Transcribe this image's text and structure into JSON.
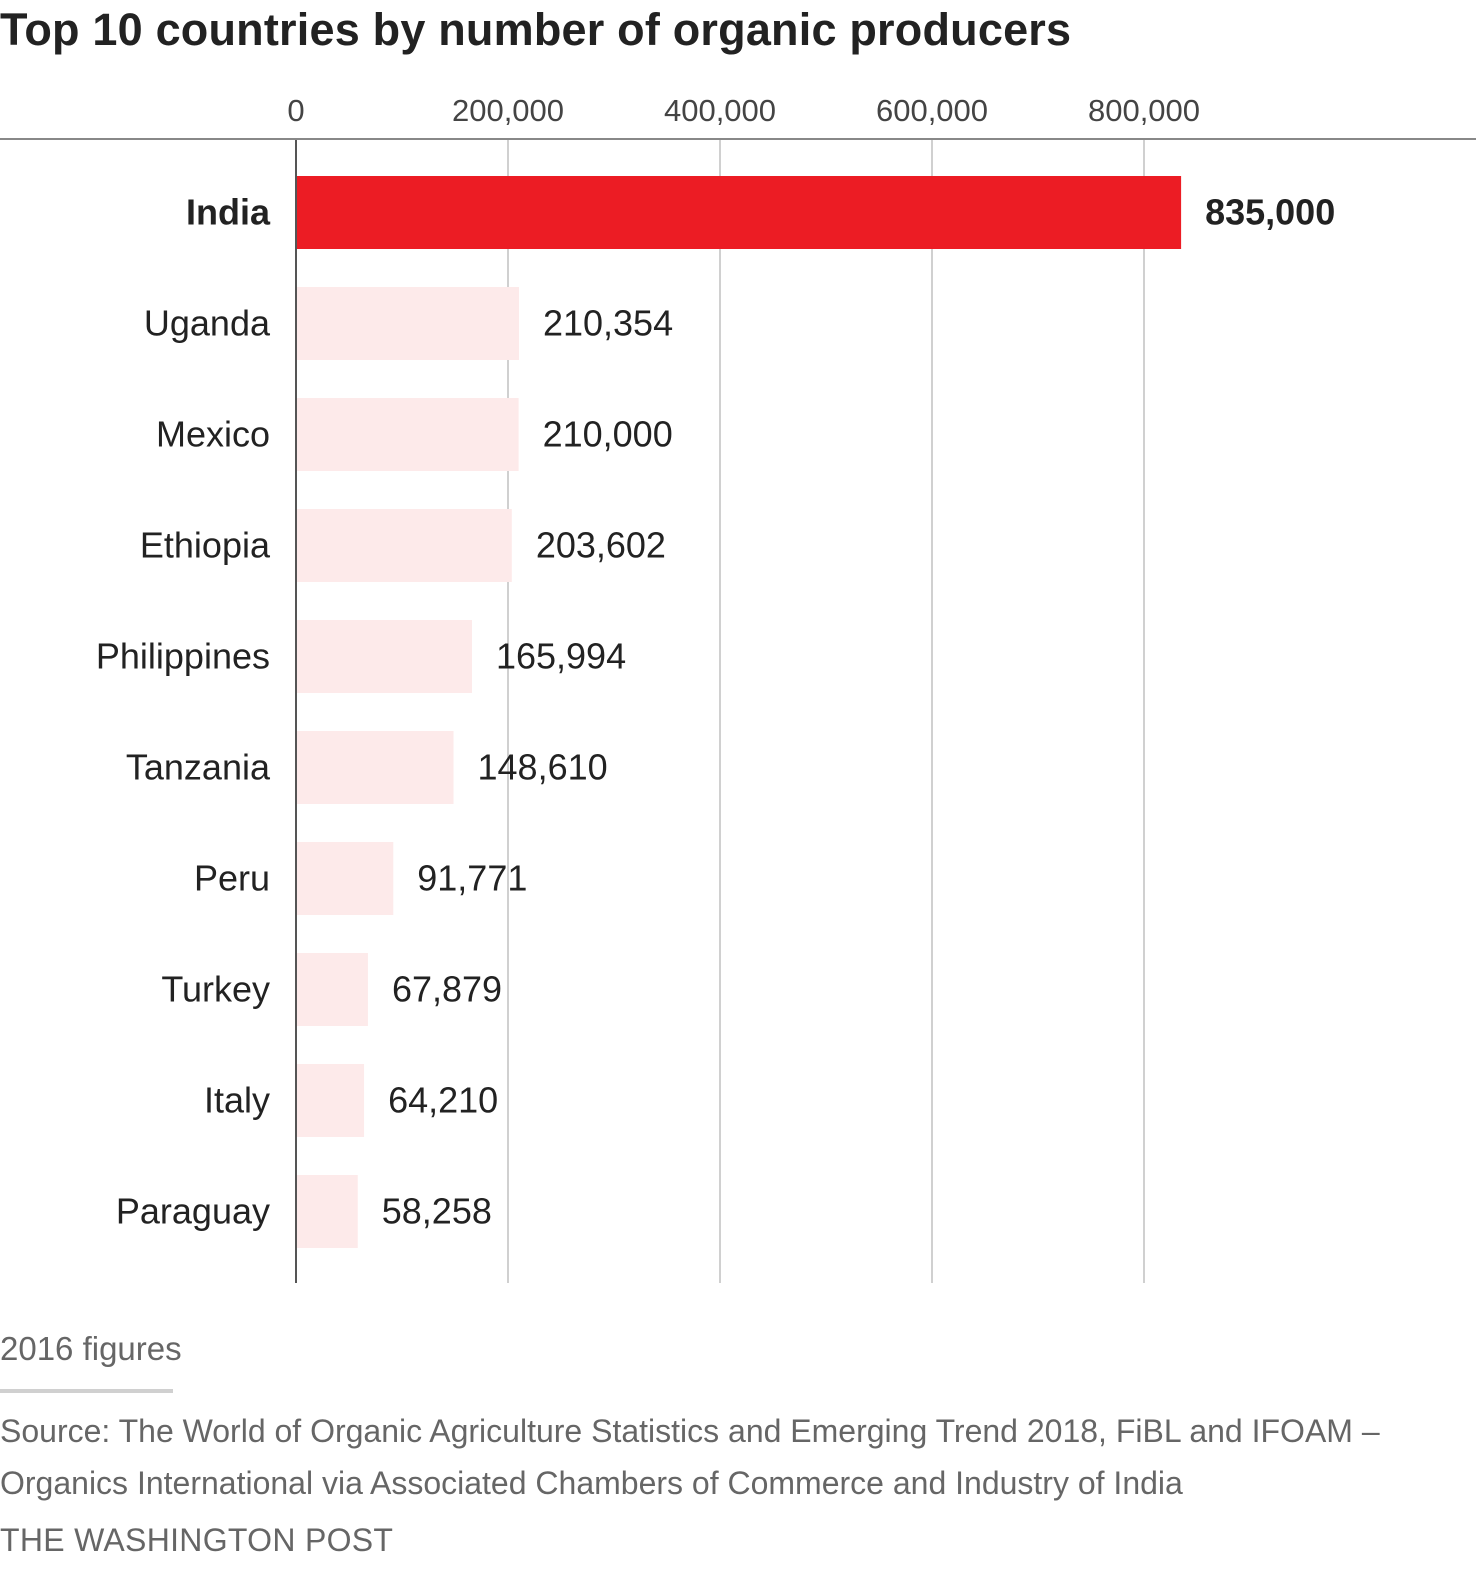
{
  "chart_data": {
    "type": "bar",
    "orientation": "horizontal",
    "title": "Top 10 countries by number of organic producers",
    "categories": [
      "India",
      "Uganda",
      "Mexico",
      "Ethiopia",
      "Philippines",
      "Tanzania",
      "Peru",
      "Turkey",
      "Italy",
      "Paraguay"
    ],
    "values": [
      835000,
      210354,
      210000,
      203602,
      165994,
      148610,
      91771,
      67879,
      64210,
      58258
    ],
    "value_labels": [
      "835,000",
      "210,354",
      "210,000",
      "203,602",
      "165,994",
      "148,610",
      "91,771",
      "67,879",
      "64,210",
      "58,258"
    ],
    "highlight": "India",
    "xlim": [
      0,
      1000000
    ],
    "xticks": [
      0,
      200000,
      400000,
      600000,
      800000
    ],
    "xtick_labels": [
      "0",
      "200,000",
      "400,000",
      "600,000",
      "800,000"
    ],
    "axis_position": "top",
    "grid": true,
    "colors": {
      "highlight": "#ec1c24",
      "bar": "#fdeaea",
      "grid": "#d0d0d0",
      "text": "#222222"
    }
  },
  "note": "2016 figures",
  "source": "Source: The World of Organic Agriculture Statistics and Emerging Trend 2018, FiBL and IFOAM – Organics International via Associated Chambers of Commerce and Industry of India",
  "credit": "THE WASHINGTON POST"
}
